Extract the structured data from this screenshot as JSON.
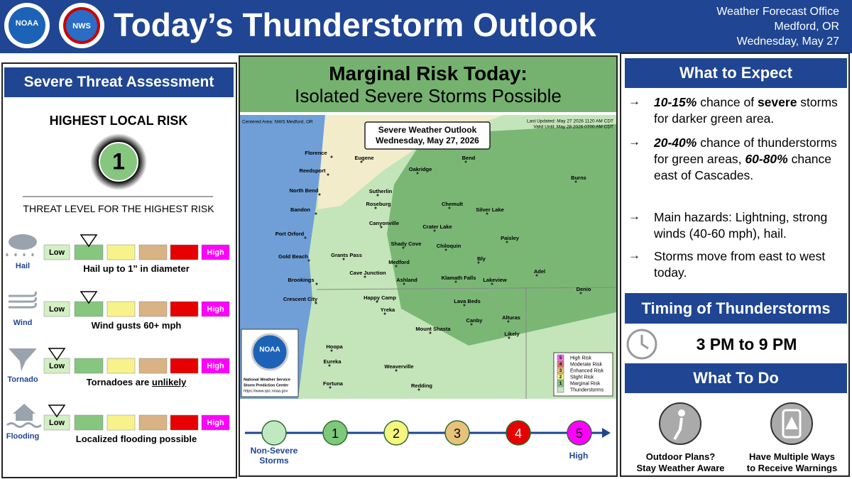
{
  "header": {
    "title": "Today’s Thunderstorm Outlook",
    "office": [
      "Weather Forecast Office",
      "Medford, OR",
      "Wednesday, May 27"
    ],
    "logos": [
      "NOAA",
      "NWS"
    ]
  },
  "threat": {
    "title": "Severe Threat Assessment",
    "highest_label": "HIGHEST LOCAL RISK",
    "highest_value": 1,
    "subtitle": "THREAT LEVEL FOR THE HIGHEST RISK",
    "low_label": "Low",
    "high_label": "High",
    "colors": [
      "#d3efc4",
      "#86c67f",
      "#f7f38a",
      "#d9b383",
      "#e60000",
      "#ff00ff"
    ],
    "rows": [
      {
        "name": "Hail",
        "level": 1,
        "desc": [
          {
            "text": "Hail up to 1” in diameter"
          }
        ]
      },
      {
        "name": "Wind",
        "level": 1,
        "desc": [
          {
            "text": "Wind gusts 60+ mph"
          }
        ]
      },
      {
        "name": "Tornado",
        "level": 0,
        "desc": [
          {
            "text": "Tornadoes are "
          },
          {
            "text": "unlikely",
            "style": "u"
          }
        ]
      },
      {
        "name": "Flooding",
        "level": 0,
        "desc": [
          {
            "text": "Localized flooding possible"
          }
        ]
      }
    ]
  },
  "map": {
    "headline": "Marginal Risk Today:",
    "subhead": "Isolated Severe Storms Possible",
    "centered": "Centered Area: NWS Medford, OR",
    "updated": "Last Updated: May 27 2026 1120 AM CDT",
    "valid": "Valid Until: May 28 2026 0700 AM CDT",
    "box": [
      "Severe Weather Outlook",
      "Wednesday, May 27, 2026"
    ],
    "cities": [
      "Florence",
      "Reedsport",
      "North Bend",
      "Bandon",
      "Port Orford",
      "Gold Beach",
      "Brookings",
      "Crescent City",
      "Eugene",
      "Oakridge",
      "Bend",
      "Burns",
      "Sutherlin",
      "Roseburg",
      "Chemult",
      "Silver Lake",
      "Canyonville",
      "Crater Lake",
      "Paisley",
      "Shady Cove",
      "Chiloquin",
      "Grants Pass",
      "Medford",
      "Bly",
      "Cave Junction",
      "Ashland",
      "Klamath Falls",
      "Lakeview",
      "Adel",
      "Denio",
      "Happy Camp",
      "Yreka",
      "Lava Beds",
      "Alturas",
      "Canby",
      "Mount Shasta",
      "Likely",
      "Hoopa",
      "Eureka",
      "Weaverville",
      "Fortuna",
      "Redding"
    ],
    "legend": [
      {
        "num": 5,
        "label": "High Risk",
        "color": "#ff66ff"
      },
      {
        "num": 4,
        "label": "Moderate Risk",
        "color": "#e67373"
      },
      {
        "num": 3,
        "label": "Enhanced Risk",
        "color": "#e6c27a"
      },
      {
        "num": 2,
        "label": "Slight Risk",
        "color": "#f6f67f"
      },
      {
        "num": 1,
        "label": "Marginal Risk",
        "color": "#7ec87c"
      },
      {
        "label": "Thunderstorms",
        "color": "#c1e9c1"
      }
    ],
    "logo": "NOAA",
    "credit": [
      "National Weather Service",
      "Storm Prediction Center",
      "https://www.spc.noaa.gov"
    ]
  },
  "scale": {
    "levels": [
      {
        "label": [
          "Non-Severe",
          "Storms"
        ],
        "color": "#c1e9c1"
      },
      {
        "num": 1,
        "color": "#7ec87c"
      },
      {
        "num": 2,
        "color": "#f6f67f"
      },
      {
        "num": 3,
        "color": "#e6c27a"
      },
      {
        "num": 4,
        "color": "#e60000"
      },
      {
        "num": 5,
        "color": "#ff00ff"
      }
    ],
    "high_label": "High"
  },
  "right": {
    "expect_title": "What to Expect",
    "bullet_symbol": "→",
    "bullets": [
      [
        {
          "text": "10-15%",
          "style": "bi"
        },
        {
          "text": " chance of "
        },
        {
          "text": "severe",
          "style": "b"
        },
        {
          "text": " storms for darker green area."
        }
      ],
      [
        {
          "text": "20-40%",
          "style": "bi"
        },
        {
          "text": " chance of thunderstorms for green areas, "
        },
        {
          "text": "60-80%",
          "style": "bi"
        },
        {
          "text": " chance east of Cascades."
        }
      ],
      [
        {
          "text": "Main hazards: Lightning, strong winds (40-60 mph), hail."
        }
      ],
      [
        {
          "text": "Storms move from east to west today."
        }
      ]
    ],
    "timing_title": "Timing of Thunderstorms",
    "timing": "3 PM to 9 PM",
    "todo_title": "What To Do",
    "todo": [
      [
        "Outdoor Plans?",
        "Stay Weather Aware"
      ],
      [
        "Have Multiple Ways",
        "to Receive Warnings"
      ]
    ]
  }
}
